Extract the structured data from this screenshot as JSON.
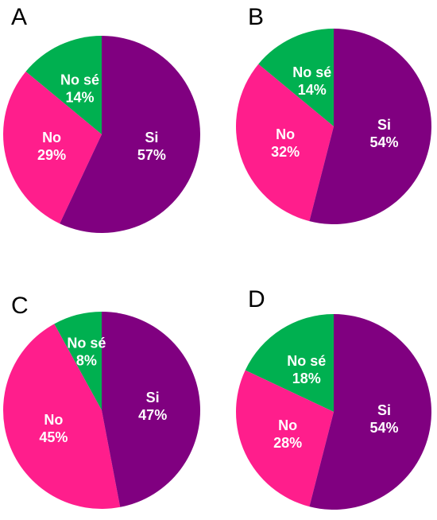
{
  "chart_data": [
    {
      "type": "pie",
      "panel": "A",
      "slices": [
        {
          "label": "Si",
          "value": 57,
          "value_label": "57%",
          "color": "#800080"
        },
        {
          "label": "No",
          "value": 29,
          "value_label": "29%",
          "color": "#ff1e8c"
        },
        {
          "label": "No sé",
          "value": 14,
          "value_label": "14%",
          "color": "#00b050"
        }
      ]
    },
    {
      "type": "pie",
      "panel": "B",
      "slices": [
        {
          "label": "Si",
          "value": 54,
          "value_label": "54%",
          "color": "#800080"
        },
        {
          "label": "No",
          "value": 32,
          "value_label": "32%",
          "color": "#ff1e8c"
        },
        {
          "label": "No sé",
          "value": 14,
          "value_label": "14%",
          "color": "#00b050"
        }
      ]
    },
    {
      "type": "pie",
      "panel": "C",
      "slices": [
        {
          "label": "Si",
          "value": 47,
          "value_label": "47%",
          "color": "#800080"
        },
        {
          "label": "No",
          "value": 45,
          "value_label": "45%",
          "color": "#ff1e8c"
        },
        {
          "label": "No sé",
          "value": 8,
          "value_label": "8%",
          "color": "#00b050"
        }
      ]
    },
    {
      "type": "pie",
      "panel": "D",
      "slices": [
        {
          "label": "Si",
          "value": 54,
          "value_label": "54%",
          "color": "#800080"
        },
        {
          "label": "No",
          "value": 28,
          "value_label": "28%",
          "color": "#ff1e8c"
        },
        {
          "label": "No sé",
          "value": 18,
          "value_label": "18%",
          "color": "#00b050"
        }
      ]
    }
  ]
}
